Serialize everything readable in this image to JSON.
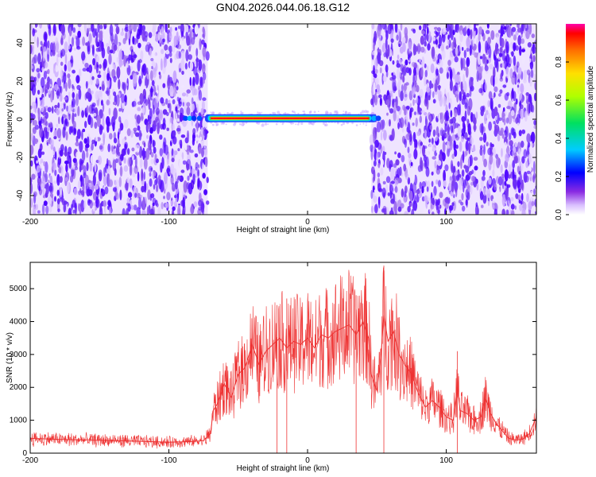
{
  "chart_data": [
    {
      "type": "heatmap",
      "title": "GN04.2026.044.06.18.G12",
      "xlabel": "Height of straight line (km)",
      "ylabel": "Frequency (Hz)",
      "xlim": [
        -200,
        165
      ],
      "ylim": [
        -50,
        50
      ],
      "x_ticks": [
        "-200",
        "-100",
        "0",
        "100"
      ],
      "y_ticks": [
        "-40",
        "-20",
        "0",
        "20",
        "40"
      ],
      "colorbar": {
        "label": "Normalized spectral amplitude",
        "range": [
          0,
          1
        ],
        "ticks": [
          "0.0",
          "0.2",
          "0.4",
          "0.6",
          "0.8"
        ]
      },
      "noise_regions_km": [
        [
          -200,
          -72
        ],
        [
          46,
          165
        ]
      ],
      "signal_band": {
        "x_start_km": -90,
        "x_end_km": 52,
        "frequency_hz": 0.5,
        "peak_amplitude": 0.95
      }
    },
    {
      "type": "line",
      "xlabel": "Height of straight line (km)",
      "ylabel": "SNR (10 * v/v)",
      "xlim": [
        -200,
        165
      ],
      "ylim": [
        0,
        5800
      ],
      "x_ticks": [
        "-200",
        "-100",
        "0",
        "100"
      ],
      "y_ticks": [
        "0",
        "1000",
        "2000",
        "3000",
        "4000",
        "5000"
      ],
      "series": [
        {
          "name": "SNR",
          "color": "#ee3333",
          "x": [
            -200,
            -180,
            -160,
            -140,
            -120,
            -100,
            -85,
            -75,
            -70,
            -68,
            -65,
            -60,
            -55,
            -50,
            -45,
            -40,
            -35,
            -30,
            -25,
            -20,
            -15,
            -10,
            -5,
            0,
            5,
            10,
            15,
            20,
            25,
            30,
            35,
            40,
            44,
            46,
            48,
            50,
            53,
            55,
            58,
            62,
            66,
            70,
            75,
            80,
            85,
            90,
            95,
            100,
            105,
            108,
            110,
            115,
            120,
            125,
            128,
            132,
            136,
            140,
            145,
            150,
            155,
            160,
            165
          ],
          "y": [
            450,
            420,
            400,
            380,
            360,
            330,
            350,
            380,
            600,
            1300,
            1500,
            2100,
            1700,
            2400,
            2600,
            3300,
            2700,
            3100,
            3300,
            3500,
            3200,
            3400,
            3300,
            3500,
            3200,
            3600,
            3500,
            3700,
            3800,
            3900,
            3600,
            4000,
            3500,
            2400,
            2100,
            1900,
            3000,
            4200,
            3400,
            3700,
            3000,
            2700,
            2400,
            1800,
            1400,
            1600,
            1400,
            1100,
            1000,
            2000,
            1300,
            1200,
            1000,
            1100,
            1700,
            1200,
            900,
            700,
            450,
            400,
            420,
            600,
            1100
          ]
        }
      ]
    }
  ]
}
